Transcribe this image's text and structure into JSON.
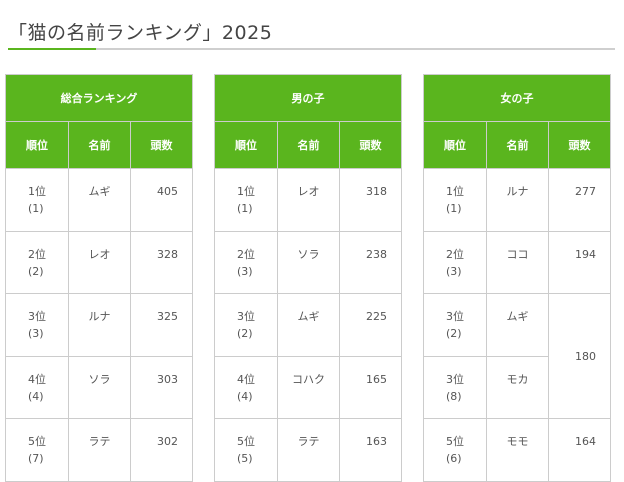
{
  "header": {
    "title": "「猫の名前ランキング」2025"
  },
  "colors": {
    "accent": "#5ab51e",
    "border": "#cccccc",
    "text": "#555555"
  },
  "tables": [
    {
      "caption": "総合ランキング",
      "headers": [
        "順位",
        "名前",
        "頭数"
      ],
      "rows": [
        {
          "rank": "1位",
          "prev": "(1)",
          "name": "ムギ",
          "count": "405"
        },
        {
          "rank": "2位",
          "prev": "(2)",
          "name": "レオ",
          "count": "328"
        },
        {
          "rank": "3位",
          "prev": "(3)",
          "name": "ルナ",
          "count": "325"
        },
        {
          "rank": "4位",
          "prev": "(4)",
          "name": "ソラ",
          "count": "303"
        },
        {
          "rank": "5位",
          "prev": "(7)",
          "name": "ラテ",
          "count": "302"
        }
      ]
    },
    {
      "caption": "男の子",
      "headers": [
        "順位",
        "名前",
        "頭数"
      ],
      "rows": [
        {
          "rank": "1位",
          "prev": "(1)",
          "name": "レオ",
          "count": "318"
        },
        {
          "rank": "2位",
          "prev": "(3)",
          "name": "ソラ",
          "count": "238"
        },
        {
          "rank": "3位",
          "prev": "(2)",
          "name": "ムギ",
          "count": "225"
        },
        {
          "rank": "4位",
          "prev": "(4)",
          "name": "コハク",
          "count": "165"
        },
        {
          "rank": "5位",
          "prev": "(5)",
          "name": "ラテ",
          "count": "163"
        }
      ]
    },
    {
      "caption": "女の子",
      "headers": [
        "順位",
        "名前",
        "頭数"
      ],
      "rows": [
        {
          "rank": "1位",
          "prev": "(1)",
          "name": "ルナ",
          "count": "277"
        },
        {
          "rank": "2位",
          "prev": "(3)",
          "name": "ココ",
          "count": "194"
        },
        {
          "rank": "3位",
          "prev": "(2)",
          "name": "ムギ",
          "count": "180"
        },
        {
          "rank": "3位",
          "prev": "(8)",
          "name": "モカ",
          "count": ""
        },
        {
          "rank": "5位",
          "prev": "(6)",
          "name": "モモ",
          "count": "164"
        }
      ]
    }
  ]
}
